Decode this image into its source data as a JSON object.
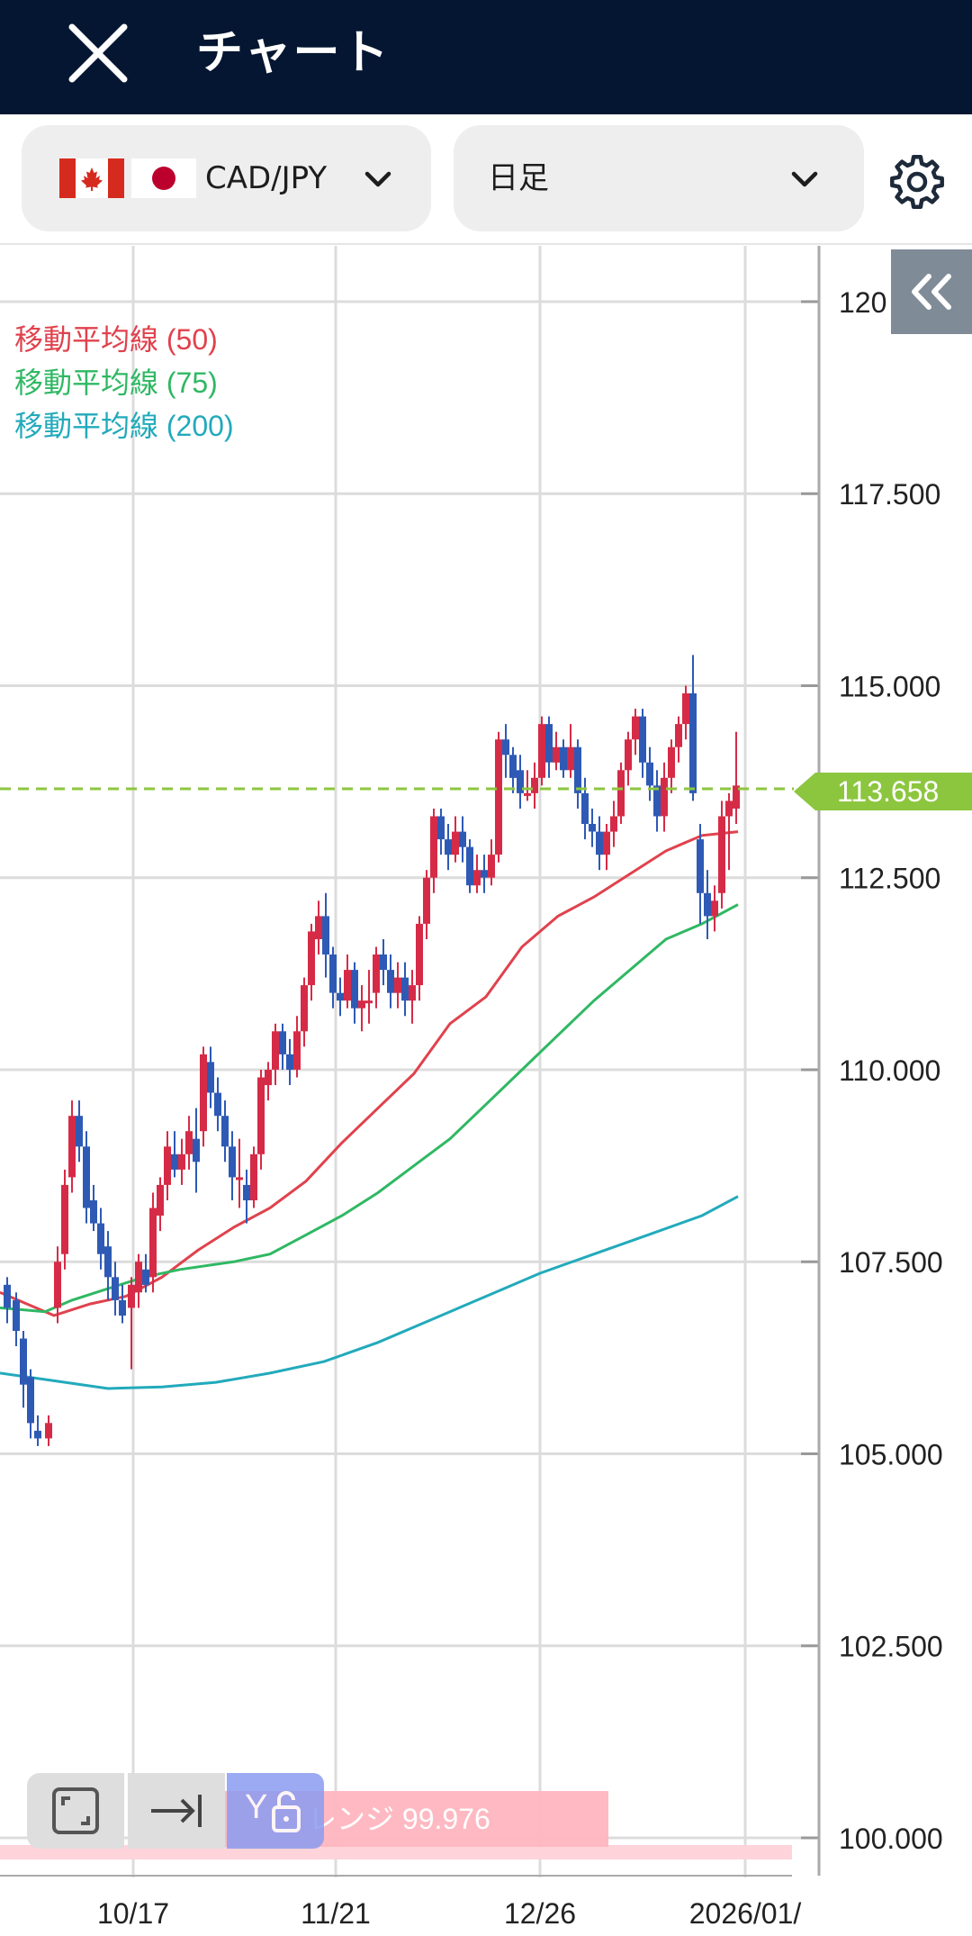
{
  "header": {
    "title": "チャート"
  },
  "toolbar": {
    "pair_label": "CAD/JPY",
    "period_label": "日足"
  },
  "chart": {
    "legend": [
      {
        "label": "移動平均線 (50)",
        "color": "#e0424d"
      },
      {
        "label": "移動平均線 (75)",
        "color": "#2fb863"
      },
      {
        "label": "移動平均線 (200)",
        "color": "#22aabb"
      }
    ],
    "current_price": "113.658",
    "range_label": "レンジ 99.976",
    "y_ticks": [
      "120",
      "117.500",
      "115.000",
      "112.500",
      "110.000",
      "107.500",
      "105.000",
      "102.500",
      "100.000"
    ],
    "x_ticks": [
      "10/17",
      "11/21",
      "12/26",
      "2026/01/"
    ]
  },
  "chart_data": {
    "type": "candlestick",
    "ylim": [
      99.976,
      120.0
    ],
    "up_color": "#d62b47",
    "down_color": "#2e5ab5",
    "x_labels": [
      "10/17",
      "11/21",
      "12/26",
      "2026/01/"
    ],
    "series": [
      {
        "name": "移動平均線 (50)",
        "color": "#e0424d"
      },
      {
        "name": "移動平均線 (75)",
        "color": "#2fb863"
      },
      {
        "name": "移動平均線 (200)",
        "color": "#22aabb"
      }
    ],
    "last_price": 113.658
  },
  "colors": {
    "header_bg": "#041631",
    "accent_green": "#8cc63f",
    "collapse_btn": "#7f8b97"
  }
}
